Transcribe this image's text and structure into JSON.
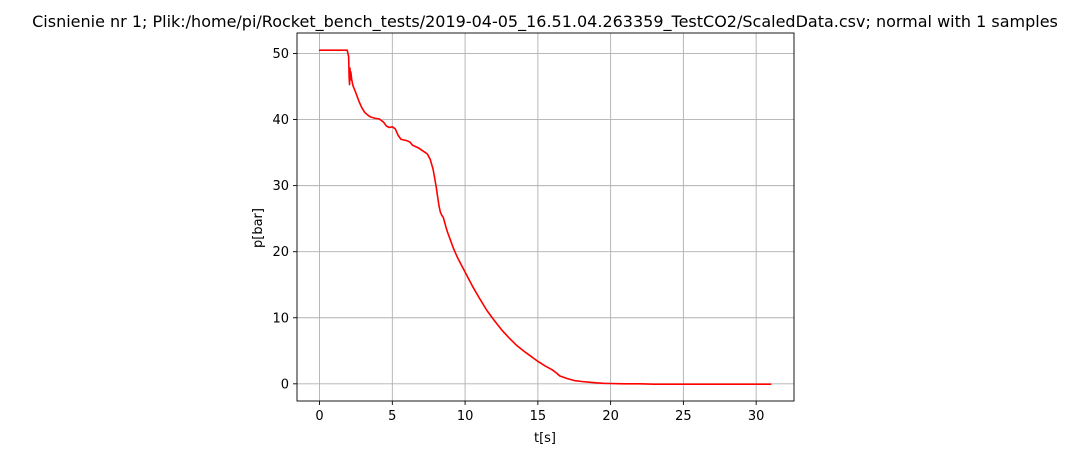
{
  "chart_data": {
    "type": "line",
    "title": "Cisnienie nr 1; Plik:/home/pi/Rocket_bench_tests/2019-04-05_16.51.04.263359_TestCO2/ScaledData.csv; normal with 1 samples",
    "xlabel": "t[s]",
    "ylabel": "p[bar]",
    "xlim": [
      -1.55,
      32.6
    ],
    "ylim": [
      -2.6,
      53.1
    ],
    "xticks": [
      {
        "value": 0,
        "label": "0"
      },
      {
        "value": 5,
        "label": "5"
      },
      {
        "value": 10,
        "label": "10"
      },
      {
        "value": 15,
        "label": "15"
      },
      {
        "value": 20,
        "label": "20"
      },
      {
        "value": 25,
        "label": "25"
      },
      {
        "value": 30,
        "label": "30"
      }
    ],
    "yticks": [
      {
        "value": 0,
        "label": "0"
      },
      {
        "value": 10,
        "label": "10"
      },
      {
        "value": 20,
        "label": "20"
      },
      {
        "value": 30,
        "label": "30"
      },
      {
        "value": 40,
        "label": "40"
      },
      {
        "value": 50,
        "label": "50"
      }
    ],
    "grid": true,
    "series": [
      {
        "color": "#ff0000",
        "x": [
          0,
          0.5,
          1.0,
          1.5,
          1.9,
          2.0,
          2.03,
          2.06,
          2.09,
          2.12,
          2.15,
          2.2,
          2.25,
          2.3,
          2.5,
          2.7,
          2.9,
          3.1,
          3.3,
          3.5,
          3.8,
          4.1,
          4.4,
          4.6,
          4.8,
          5.0,
          5.2,
          5.4,
          5.5,
          5.6,
          5.8,
          6.0,
          6.2,
          6.4,
          6.6,
          6.8,
          7.0,
          7.2,
          7.4,
          7.6,
          7.8,
          8.0,
          8.1,
          8.2,
          8.3,
          8.4,
          8.5,
          8.6,
          8.7,
          8.8,
          9.0,
          9.2,
          9.5,
          10.0,
          10.5,
          11.0,
          11.5,
          12.0,
          12.5,
          13.0,
          13.5,
          14.0,
          14.5,
          15.0,
          15.5,
          16.0,
          16.3,
          16.5,
          17.0,
          17.5,
          18.0,
          18.5,
          19.0,
          19.5,
          20.0,
          20.5,
          21.0,
          22.0,
          23.0,
          25.0,
          28.0,
          31.0
        ],
        "y": [
          50.5,
          50.5,
          50.5,
          50.5,
          50.5,
          49.5,
          46.5,
          45.3,
          47.8,
          46.0,
          47.2,
          46.2,
          45.6,
          45.1,
          44.0,
          42.8,
          41.8,
          41.1,
          40.7,
          40.4,
          40.2,
          40.1,
          39.6,
          39.0,
          38.8,
          38.9,
          38.6,
          37.6,
          37.3,
          37.0,
          36.9,
          36.8,
          36.6,
          36.1,
          35.9,
          35.7,
          35.4,
          35.1,
          34.8,
          34.0,
          32.5,
          30.0,
          28.5,
          27.0,
          26.0,
          25.5,
          25.2,
          24.4,
          23.6,
          22.9,
          21.7,
          20.5,
          19.0,
          16.9,
          14.8,
          12.9,
          11.1,
          9.6,
          8.2,
          7.0,
          5.9,
          5.0,
          4.2,
          3.4,
          2.7,
          2.1,
          1.6,
          1.2,
          0.8,
          0.5,
          0.35,
          0.25,
          0.15,
          0.08,
          0.05,
          0.02,
          0.0,
          0.0,
          -0.05,
          -0.05,
          -0.05,
          -0.05
        ]
      }
    ]
  }
}
